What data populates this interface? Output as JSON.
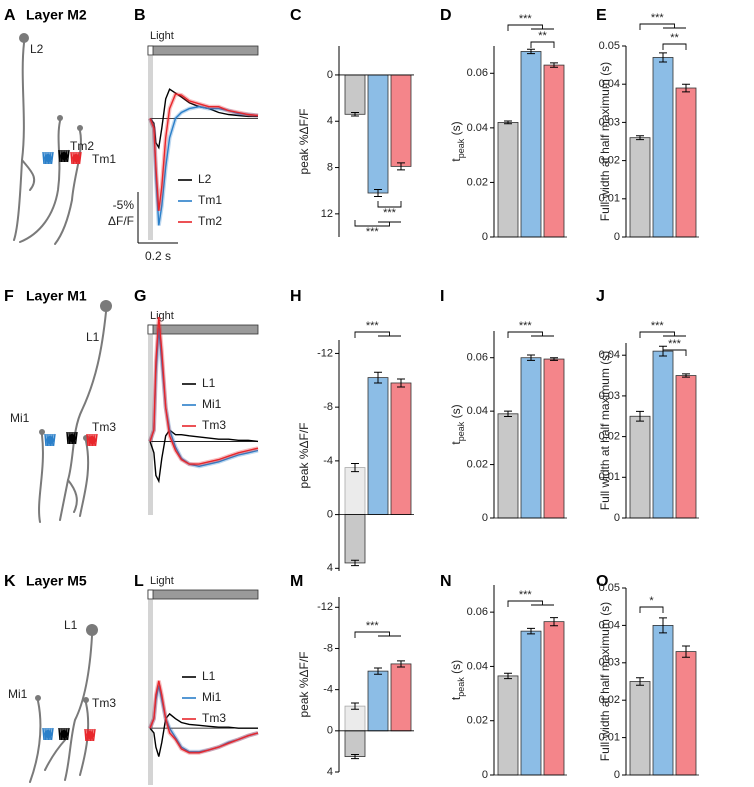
{
  "chart_data": [
    {
      "type": "neuron",
      "panel": "A",
      "title": "Layer M2",
      "cells": [
        "L2",
        "Tm2",
        "Tm1"
      ]
    },
    {
      "type": "trace",
      "panel": "B",
      "stimulus_label": "Light",
      "xlim": [
        0,
        0.55
      ],
      "x": [
        0,
        0.02,
        0.03,
        0.045,
        0.06,
        0.08,
        0.1,
        0.13,
        0.16,
        0.2,
        0.25,
        0.3,
        0.35,
        0.4,
        0.45,
        0.5,
        0.55
      ],
      "ylim": [
        -12.5,
        6
      ],
      "series": [
        {
          "name": "L2",
          "color": "#000000",
          "values": [
            0,
            -0.5,
            -2.5,
            -3,
            -1,
            2,
            3,
            2.6,
            2.2,
            1.6,
            1.2,
            1,
            0.6,
            0.4,
            0.3,
            0.2,
            0.2
          ]
        },
        {
          "name": "Tm1",
          "color": "#2a7fc9",
          "values": [
            0,
            -1,
            -6,
            -11,
            -9,
            -5,
            -2,
            0,
            0.6,
            1,
            1.2,
            1,
            1,
            0.8,
            0.5,
            0.4,
            0.3
          ]
        },
        {
          "name": "Tm2",
          "color": "#e8262b",
          "values": [
            0,
            -1,
            -5,
            -9.5,
            -7,
            -2,
            1,
            2.5,
            2.4,
            1.8,
            1.5,
            1.2,
            1.2,
            0.8,
            0.6,
            0.4,
            0.3
          ]
        }
      ],
      "scale_y_label": [
        "-5%",
        "ΔF/F"
      ],
      "scale_x_label": "0.2 s"
    },
    {
      "type": "bar",
      "panel": "C",
      "ylabel": [
        "peak %ΔF/F"
      ],
      "ylim": [
        -2.5,
        14
      ],
      "y_inverted": true,
      "yticks": [
        0,
        4,
        8,
        12
      ],
      "values": [
        3.4,
        10.2,
        7.9
      ],
      "errors": [
        0.15,
        0.3,
        0.3
      ],
      "colors": [
        "#c8c8c8",
        "#8cbde6",
        "#f4858a"
      ],
      "significance": [
        "***",
        "***"
      ]
    },
    {
      "type": "bar",
      "panel": "D",
      "ylabel": [
        "t",
        "peak",
        " (s)"
      ],
      "ylim": [
        0,
        0.07
      ],
      "yticks": [
        0,
        0.02,
        0.04,
        0.06
      ],
      "values": [
        0.042,
        0.068,
        0.063
      ],
      "errors": [
        0.0005,
        0.0008,
        0.0008
      ],
      "colors": [
        "#c8c8c8",
        "#8cbde6",
        "#f4858a"
      ],
      "significance": [
        "***",
        "**"
      ]
    },
    {
      "type": "bar",
      "panel": "E",
      "ylabel": [
        "Full width at half maximum (s)"
      ],
      "ylim": [
        0,
        0.05
      ],
      "yticks": [
        0,
        0.01,
        0.02,
        0.03,
        0.04,
        0.05
      ],
      "values": [
        0.026,
        0.047,
        0.039
      ],
      "errors": [
        0.0005,
        0.0012,
        0.001
      ],
      "colors": [
        "#c8c8c8",
        "#8cbde6",
        "#f4858a"
      ],
      "significance": [
        "***",
        "**"
      ]
    },
    {
      "type": "neuron",
      "panel": "F",
      "title": "Layer M1",
      "cells": [
        "L1",
        "Mi1",
        "Tm3"
      ]
    },
    {
      "type": "trace",
      "panel": "G",
      "stimulus_label": "Light",
      "xlim": [
        0,
        0.55
      ],
      "x": [
        0,
        0.02,
        0.03,
        0.045,
        0.06,
        0.08,
        0.1,
        0.13,
        0.16,
        0.2,
        0.25,
        0.3,
        0.35,
        0.4,
        0.45,
        0.5,
        0.55
      ],
      "ylim": [
        -6.5,
        12.5
      ],
      "series": [
        {
          "name": "L1",
          "color": "#000000",
          "values": [
            0,
            -1,
            -3,
            -3.5,
            -1.5,
            0.5,
            1,
            0.6,
            0.6,
            0.5,
            0.4,
            0.3,
            0.2,
            0.2,
            0.1,
            0.1,
            0
          ]
        },
        {
          "name": "Mi1",
          "color": "#2a7fc9",
          "values": [
            0,
            1,
            6,
            10,
            7,
            3,
            1,
            -0.5,
            -1.5,
            -2,
            -2.2,
            -2,
            -1.8,
            -1.5,
            -1.2,
            -1,
            -0.8
          ]
        },
        {
          "name": "Tm3",
          "color": "#e8262b",
          "values": [
            0,
            1,
            7,
            11,
            8,
            3,
            0.5,
            -0.8,
            -1.6,
            -2,
            -2,
            -1.8,
            -1.6,
            -1.3,
            -1,
            -0.8,
            -0.6
          ]
        }
      ]
    },
    {
      "type": "bar",
      "panel": "H",
      "ylabel": [
        "peak %ΔF/F"
      ],
      "ylim": [
        -13,
        4.2
      ],
      "y_inverted": true,
      "yticks": [
        -12,
        -8,
        -4,
        0,
        4
      ],
      "values": [
        3.6,
        -10.2,
        -9.8
      ],
      "errors": [
        0.2,
        0.4,
        0.3
      ],
      "colors": [
        "#c8c8c8",
        "#8cbde6",
        "#f4858a"
      ],
      "mirror_values": [
        -3.5
      ],
      "mirror_errors": [
        0.3
      ],
      "mirror_color": "#ebebeb",
      "significance": [
        "***"
      ]
    },
    {
      "type": "bar",
      "panel": "I",
      "ylabel": [
        "t",
        "peak",
        " (s)"
      ],
      "ylim": [
        0,
        0.07
      ],
      "yticks": [
        0,
        0.02,
        0.04,
        0.06
      ],
      "values": [
        0.039,
        0.06,
        0.0595
      ],
      "errors": [
        0.001,
        0.001,
        0.0005
      ],
      "colors": [
        "#c8c8c8",
        "#8cbde6",
        "#f4858a"
      ],
      "significance": [
        "***"
      ]
    },
    {
      "type": "bar",
      "panel": "J",
      "ylabel": [
        "Full width at half maximum (s)"
      ],
      "ylim": [
        0,
        0.043
      ],
      "yticks": [
        0,
        0.01,
        0.02,
        0.03,
        0.04
      ],
      "values": [
        0.025,
        0.041,
        0.035
      ],
      "errors": [
        0.0012,
        0.0012,
        0.0004
      ],
      "colors": [
        "#c8c8c8",
        "#8cbde6",
        "#f4858a"
      ],
      "significance": [
        "***",
        "***"
      ]
    },
    {
      "type": "neuron",
      "panel": "K",
      "title": "Layer M5",
      "cells": [
        "L1",
        "Mi1",
        "Tm3"
      ]
    },
    {
      "type": "trace",
      "panel": "L",
      "stimulus_label": "Light",
      "xlim": [
        0,
        0.55
      ],
      "x": [
        0,
        0.02,
        0.03,
        0.045,
        0.06,
        0.08,
        0.1,
        0.13,
        0.16,
        0.2,
        0.25,
        0.3,
        0.35,
        0.4,
        0.45,
        0.5,
        0.55
      ],
      "ylim": [
        -6,
        13
      ],
      "series": [
        {
          "name": "L1",
          "color": "#000000",
          "values": [
            0,
            -0.5,
            -2,
            -3,
            -1.5,
            1,
            1.5,
            1,
            0.6,
            0.4,
            0.3,
            0.2,
            0.1,
            0.1,
            0,
            0,
            0
          ]
        },
        {
          "name": "Mi1",
          "color": "#2a7fc9",
          "values": [
            0,
            1,
            3,
            4.5,
            3,
            1,
            0,
            -1,
            -2,
            -2.5,
            -2.5,
            -2.3,
            -2,
            -1.5,
            -1.2,
            -0.8,
            -0.5
          ]
        },
        {
          "name": "Tm3",
          "color": "#e8262b",
          "values": [
            0,
            1,
            3.5,
            5,
            3.5,
            1,
            -0.5,
            -1.2,
            -2.2,
            -2.6,
            -2.6,
            -2.3,
            -2,
            -1.6,
            -1.2,
            -0.8,
            -0.5
          ]
        }
      ]
    },
    {
      "type": "bar",
      "panel": "M",
      "ylabel": [
        "peak %ΔF/F"
      ],
      "ylim": [
        -13,
        4
      ],
      "y_inverted": true,
      "yticks": [
        -12,
        -8,
        -4,
        0,
        4
      ],
      "values": [
        2.5,
        -5.8,
        -6.5
      ],
      "errors": [
        0.2,
        0.3,
        0.3
      ],
      "colors": [
        "#c8c8c8",
        "#8cbde6",
        "#f4858a"
      ],
      "mirror_values": [
        -2.4
      ],
      "mirror_errors": [
        0.3
      ],
      "mirror_color": "#ebebeb",
      "significance": [
        "***"
      ]
    },
    {
      "type": "bar",
      "panel": "N",
      "ylabel": [
        "t",
        "peak",
        " (s)"
      ],
      "ylim": [
        0,
        0.07
      ],
      "yticks": [
        0,
        0.02,
        0.04,
        0.06
      ],
      "values": [
        0.0365,
        0.053,
        0.0565
      ],
      "errors": [
        0.001,
        0.001,
        0.0015
      ],
      "colors": [
        "#c8c8c8",
        "#8cbde6",
        "#f4858a"
      ],
      "significance": [
        "***"
      ]
    },
    {
      "type": "bar",
      "panel": "O",
      "ylabel": [
        "Full width at half maximum (s)"
      ],
      "ylim": [
        0,
        0.05
      ],
      "yticks": [
        0,
        0.01,
        0.02,
        0.03,
        0.04,
        0.05
      ],
      "values": [
        0.025,
        0.04,
        0.033
      ],
      "errors": [
        0.001,
        0.002,
        0.0015
      ],
      "colors": [
        "#c8c8c8",
        "#8cbde6",
        "#f4858a"
      ],
      "significance": [
        "*"
      ]
    }
  ]
}
